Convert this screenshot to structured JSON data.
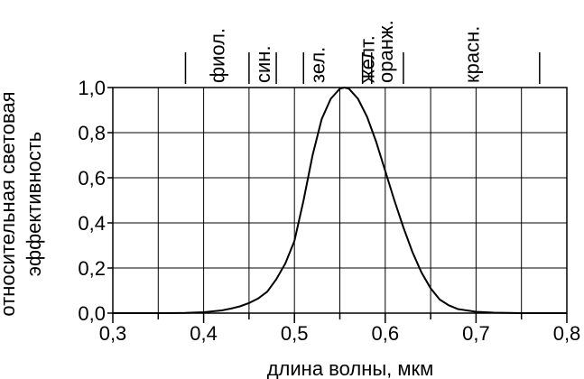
{
  "chart_data": {
    "type": "line",
    "xlabel": "длина волны, мкм",
    "ylabel_lines": [
      "относительная световая",
      "эффективность"
    ],
    "xlim": [
      0.3,
      0.8
    ],
    "ylim": [
      0,
      1.0
    ],
    "grid": true,
    "x_ticks": [
      {
        "value": 0.3,
        "label": "0,3"
      },
      {
        "value": 0.4,
        "label": "0,4"
      },
      {
        "value": 0.5,
        "label": "0,5"
      },
      {
        "value": 0.6,
        "label": "0,6"
      },
      {
        "value": 0.7,
        "label": "0,7"
      },
      {
        "value": 0.8,
        "label": "0,8"
      }
    ],
    "y_ticks": [
      {
        "value": 0.0,
        "label": "0,0"
      },
      {
        "value": 0.2,
        "label": "0,2"
      },
      {
        "value": 0.4,
        "label": "0,4"
      },
      {
        "value": 0.6,
        "label": "0,6"
      },
      {
        "value": 0.8,
        "label": "0,8"
      },
      {
        "value": 1.0,
        "label": "1,0"
      }
    ],
    "spectral_boundaries": [
      0.38,
      0.45,
      0.48,
      0.51,
      0.575,
      0.585,
      0.62,
      0.77
    ],
    "spectral_bands": [
      {
        "label": "фиол.",
        "x": 0.415
      },
      {
        "label": "син.",
        "x": 0.465
      },
      {
        "label": "зел.",
        "x": 0.525
      },
      {
        "label": "желт.",
        "x": 0.58
      },
      {
        "label": "оранж.",
        "x": 0.6
      },
      {
        "label": "красн.",
        "x": 0.695
      }
    ],
    "series": [
      {
        "x": [
          0.3,
          0.33,
          0.36,
          0.38,
          0.4,
          0.42,
          0.43,
          0.44,
          0.45,
          0.46,
          0.47,
          0.48,
          0.49,
          0.5,
          0.51,
          0.52,
          0.53,
          0.54,
          0.55,
          0.555,
          0.56,
          0.57,
          0.58,
          0.59,
          0.6,
          0.61,
          0.62,
          0.63,
          0.64,
          0.65,
          0.66,
          0.67,
          0.68,
          0.7,
          0.72,
          0.75,
          0.78,
          0.8
        ],
        "y": [
          0.0,
          0.0,
          0.0,
          0.001,
          0.004,
          0.012,
          0.02,
          0.03,
          0.045,
          0.065,
          0.095,
          0.15,
          0.22,
          0.32,
          0.5,
          0.7,
          0.86,
          0.95,
          0.995,
          1.0,
          0.995,
          0.95,
          0.87,
          0.76,
          0.63,
          0.5,
          0.38,
          0.27,
          0.18,
          0.11,
          0.06,
          0.035,
          0.018,
          0.006,
          0.002,
          0.0,
          0.0,
          0.0
        ]
      }
    ]
  }
}
